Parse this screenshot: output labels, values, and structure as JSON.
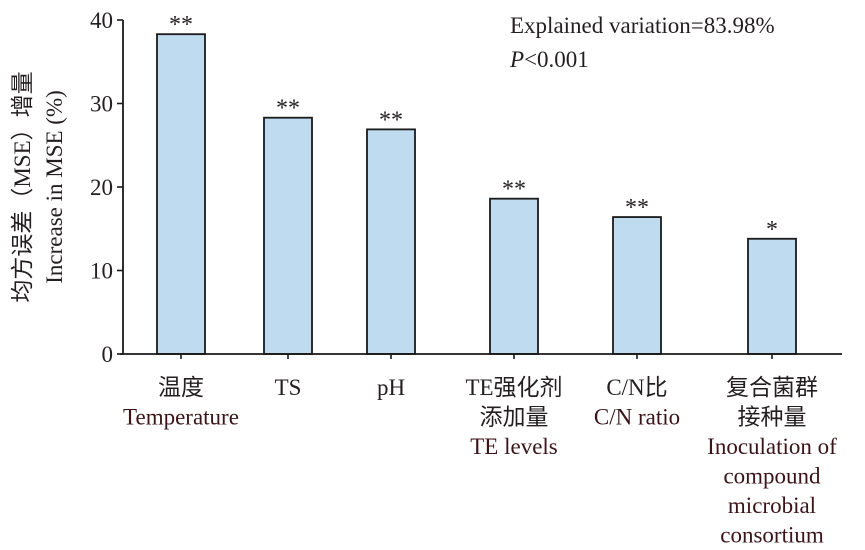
{
  "chart_data": {
    "type": "bar",
    "ylabel_cn": "均方误差（MSE）增量",
    "ylabel_en": "Increase in MSE (%)",
    "ylim": [
      0,
      40
    ],
    "yticks": [
      0,
      10,
      20,
      30,
      40
    ],
    "categories": [
      {
        "lines": [
          "温度",
          "Temperature"
        ]
      },
      {
        "lines": [
          "TS"
        ]
      },
      {
        "lines": [
          "pH"
        ]
      },
      {
        "lines": [
          "TE强化剂",
          "添加量",
          "TE levels"
        ]
      },
      {
        "lines": [
          "C/N比",
          "C/N ratio"
        ]
      },
      {
        "lines": [
          "复合菌群",
          "接种量",
          "Inoculation of",
          "compound",
          "microbial",
          "consortium"
        ]
      }
    ],
    "values": [
      38.3,
      28.3,
      26.9,
      18.6,
      16.4,
      13.8
    ],
    "significance": [
      "**",
      "**",
      "**",
      "**",
      "**",
      "*"
    ],
    "annotation": {
      "line1": "Explained variation=83.98%",
      "p_italic": "P",
      "p_rest": "<0.001"
    },
    "bar_color": "#bfdbf0",
    "bar_edge_color": "#1a1a1a",
    "grid": false,
    "legend": "none"
  }
}
